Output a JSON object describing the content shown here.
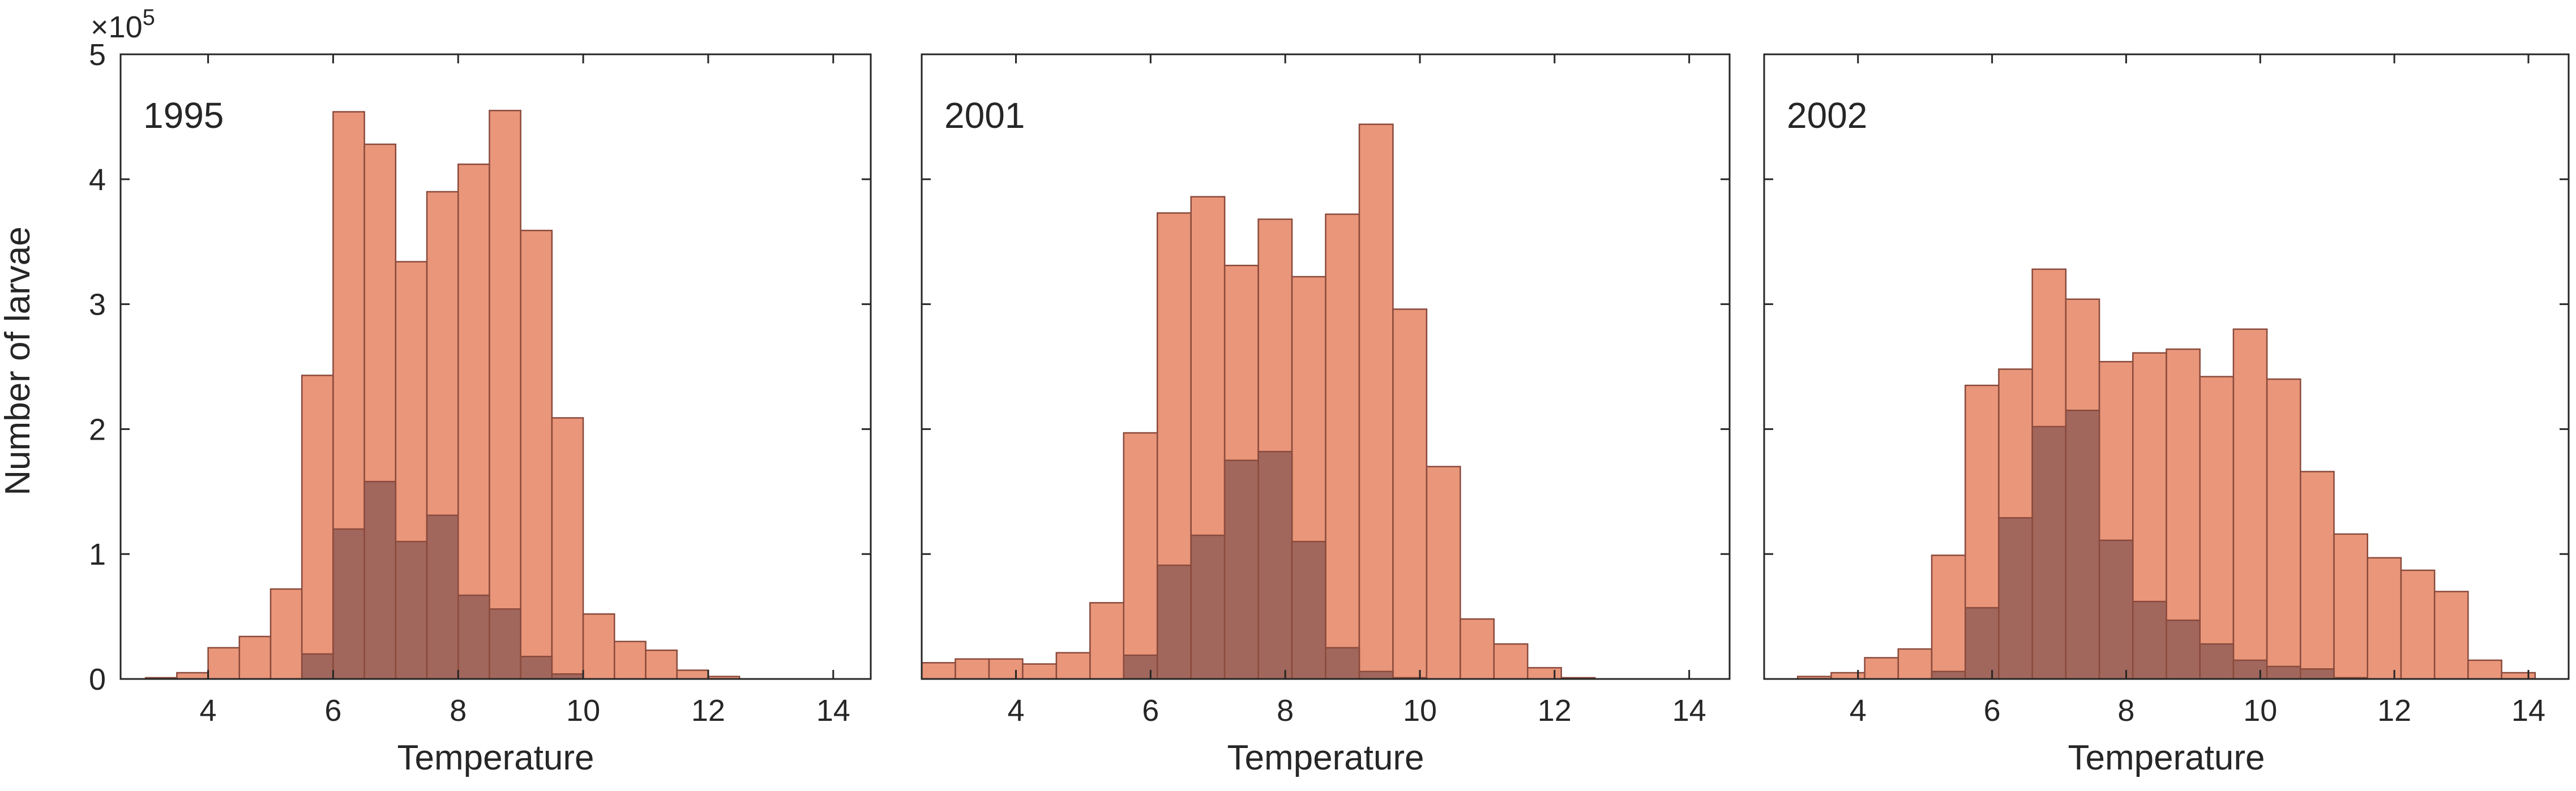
{
  "figure": {
    "ylabel": "Number of larvae",
    "y_exponent_base": "×10",
    "y_exponent_power": "5",
    "colors": {
      "bar_light": "#e9967a",
      "bar_dark": "#a1675c",
      "bar_edge": "#8a4a3c",
      "axis": "#262626"
    }
  },
  "chart_data": [
    {
      "type": "bar",
      "label": "1995",
      "xlabel": "Temperature",
      "ylabel": "Number of larvae",
      "y_scale_multiplier": 100000,
      "xlim": [
        2.6,
        14.6
      ],
      "ylim": [
        0,
        5
      ],
      "xticks": [
        4,
        6,
        8,
        10,
        12,
        14
      ],
      "yticks": [
        0,
        1,
        2,
        3,
        4,
        5
      ],
      "bin_width": 0.5,
      "bin_start": 3.0,
      "series": [
        {
          "values": [
            0.01,
            0.05,
            0.25,
            0.34,
            0.72,
            2.43,
            4.54,
            4.28,
            3.34,
            3.9,
            4.12,
            4.55,
            3.59,
            2.09,
            0.52,
            0.3,
            0.23,
            0.07,
            0.02,
            0,
            0,
            0,
            0
          ]
        },
        {
          "values": [
            0,
            0,
            0,
            0,
            0,
            0.2,
            1.2,
            1.58,
            1.1,
            1.31,
            0.67,
            0.56,
            0.18,
            0.04,
            0,
            0,
            0,
            0,
            0,
            0,
            0,
            0,
            0
          ]
        }
      ]
    },
    {
      "type": "bar",
      "label": "2001",
      "xlabel": "Temperature",
      "ylabel": "",
      "y_scale_multiplier": 100000,
      "xlim": [
        2.6,
        14.6
      ],
      "ylim": [
        0,
        5
      ],
      "xticks": [
        4,
        6,
        8,
        10,
        12,
        14
      ],
      "yticks": [
        0,
        1,
        2,
        3,
        4,
        5
      ],
      "bin_width": 0.5,
      "bin_start": 2.6,
      "series": [
        {
          "values": [
            0.13,
            0.16,
            0.16,
            0.12,
            0.21,
            0.61,
            1.97,
            3.73,
            3.86,
            3.31,
            3.68,
            3.22,
            3.72,
            4.44,
            2.96,
            1.7,
            0.48,
            0.28,
            0.09,
            0.01,
            0,
            0,
            0,
            0
          ]
        },
        {
          "values": [
            0,
            0,
            0,
            0,
            0,
            0,
            0.19,
            0.91,
            1.15,
            1.75,
            1.82,
            1.1,
            0.25,
            0.06,
            0.01,
            0,
            0,
            0,
            0,
            0,
            0,
            0,
            0,
            0
          ]
        }
      ]
    },
    {
      "type": "bar",
      "label": "2002",
      "xlabel": "Temperature",
      "ylabel": "",
      "y_scale_multiplier": 100000,
      "xlim": [
        2.6,
        14.6
      ],
      "ylim": [
        0,
        5
      ],
      "xticks": [
        4,
        6,
        8,
        10,
        12,
        14
      ],
      "yticks": [
        0,
        1,
        2,
        3,
        4,
        5
      ],
      "bin_width": 0.5,
      "bin_start": 2.6,
      "series": [
        {
          "values": [
            0,
            0.02,
            0.05,
            0.17,
            0.24,
            0.99,
            2.35,
            2.48,
            3.28,
            3.04,
            2.54,
            2.61,
            2.64,
            2.42,
            2.8,
            2.4,
            1.66,
            1.16,
            0.97,
            0.87,
            0.7,
            0.15,
            0.05
          ]
        },
        {
          "values": [
            0,
            0,
            0,
            0,
            0,
            0.06,
            0.57,
            1.29,
            2.02,
            2.15,
            1.11,
            0.62,
            0.47,
            0.28,
            0.15,
            0.1,
            0.08,
            0.01,
            0,
            0,
            0,
            0,
            0
          ]
        }
      ]
    }
  ]
}
